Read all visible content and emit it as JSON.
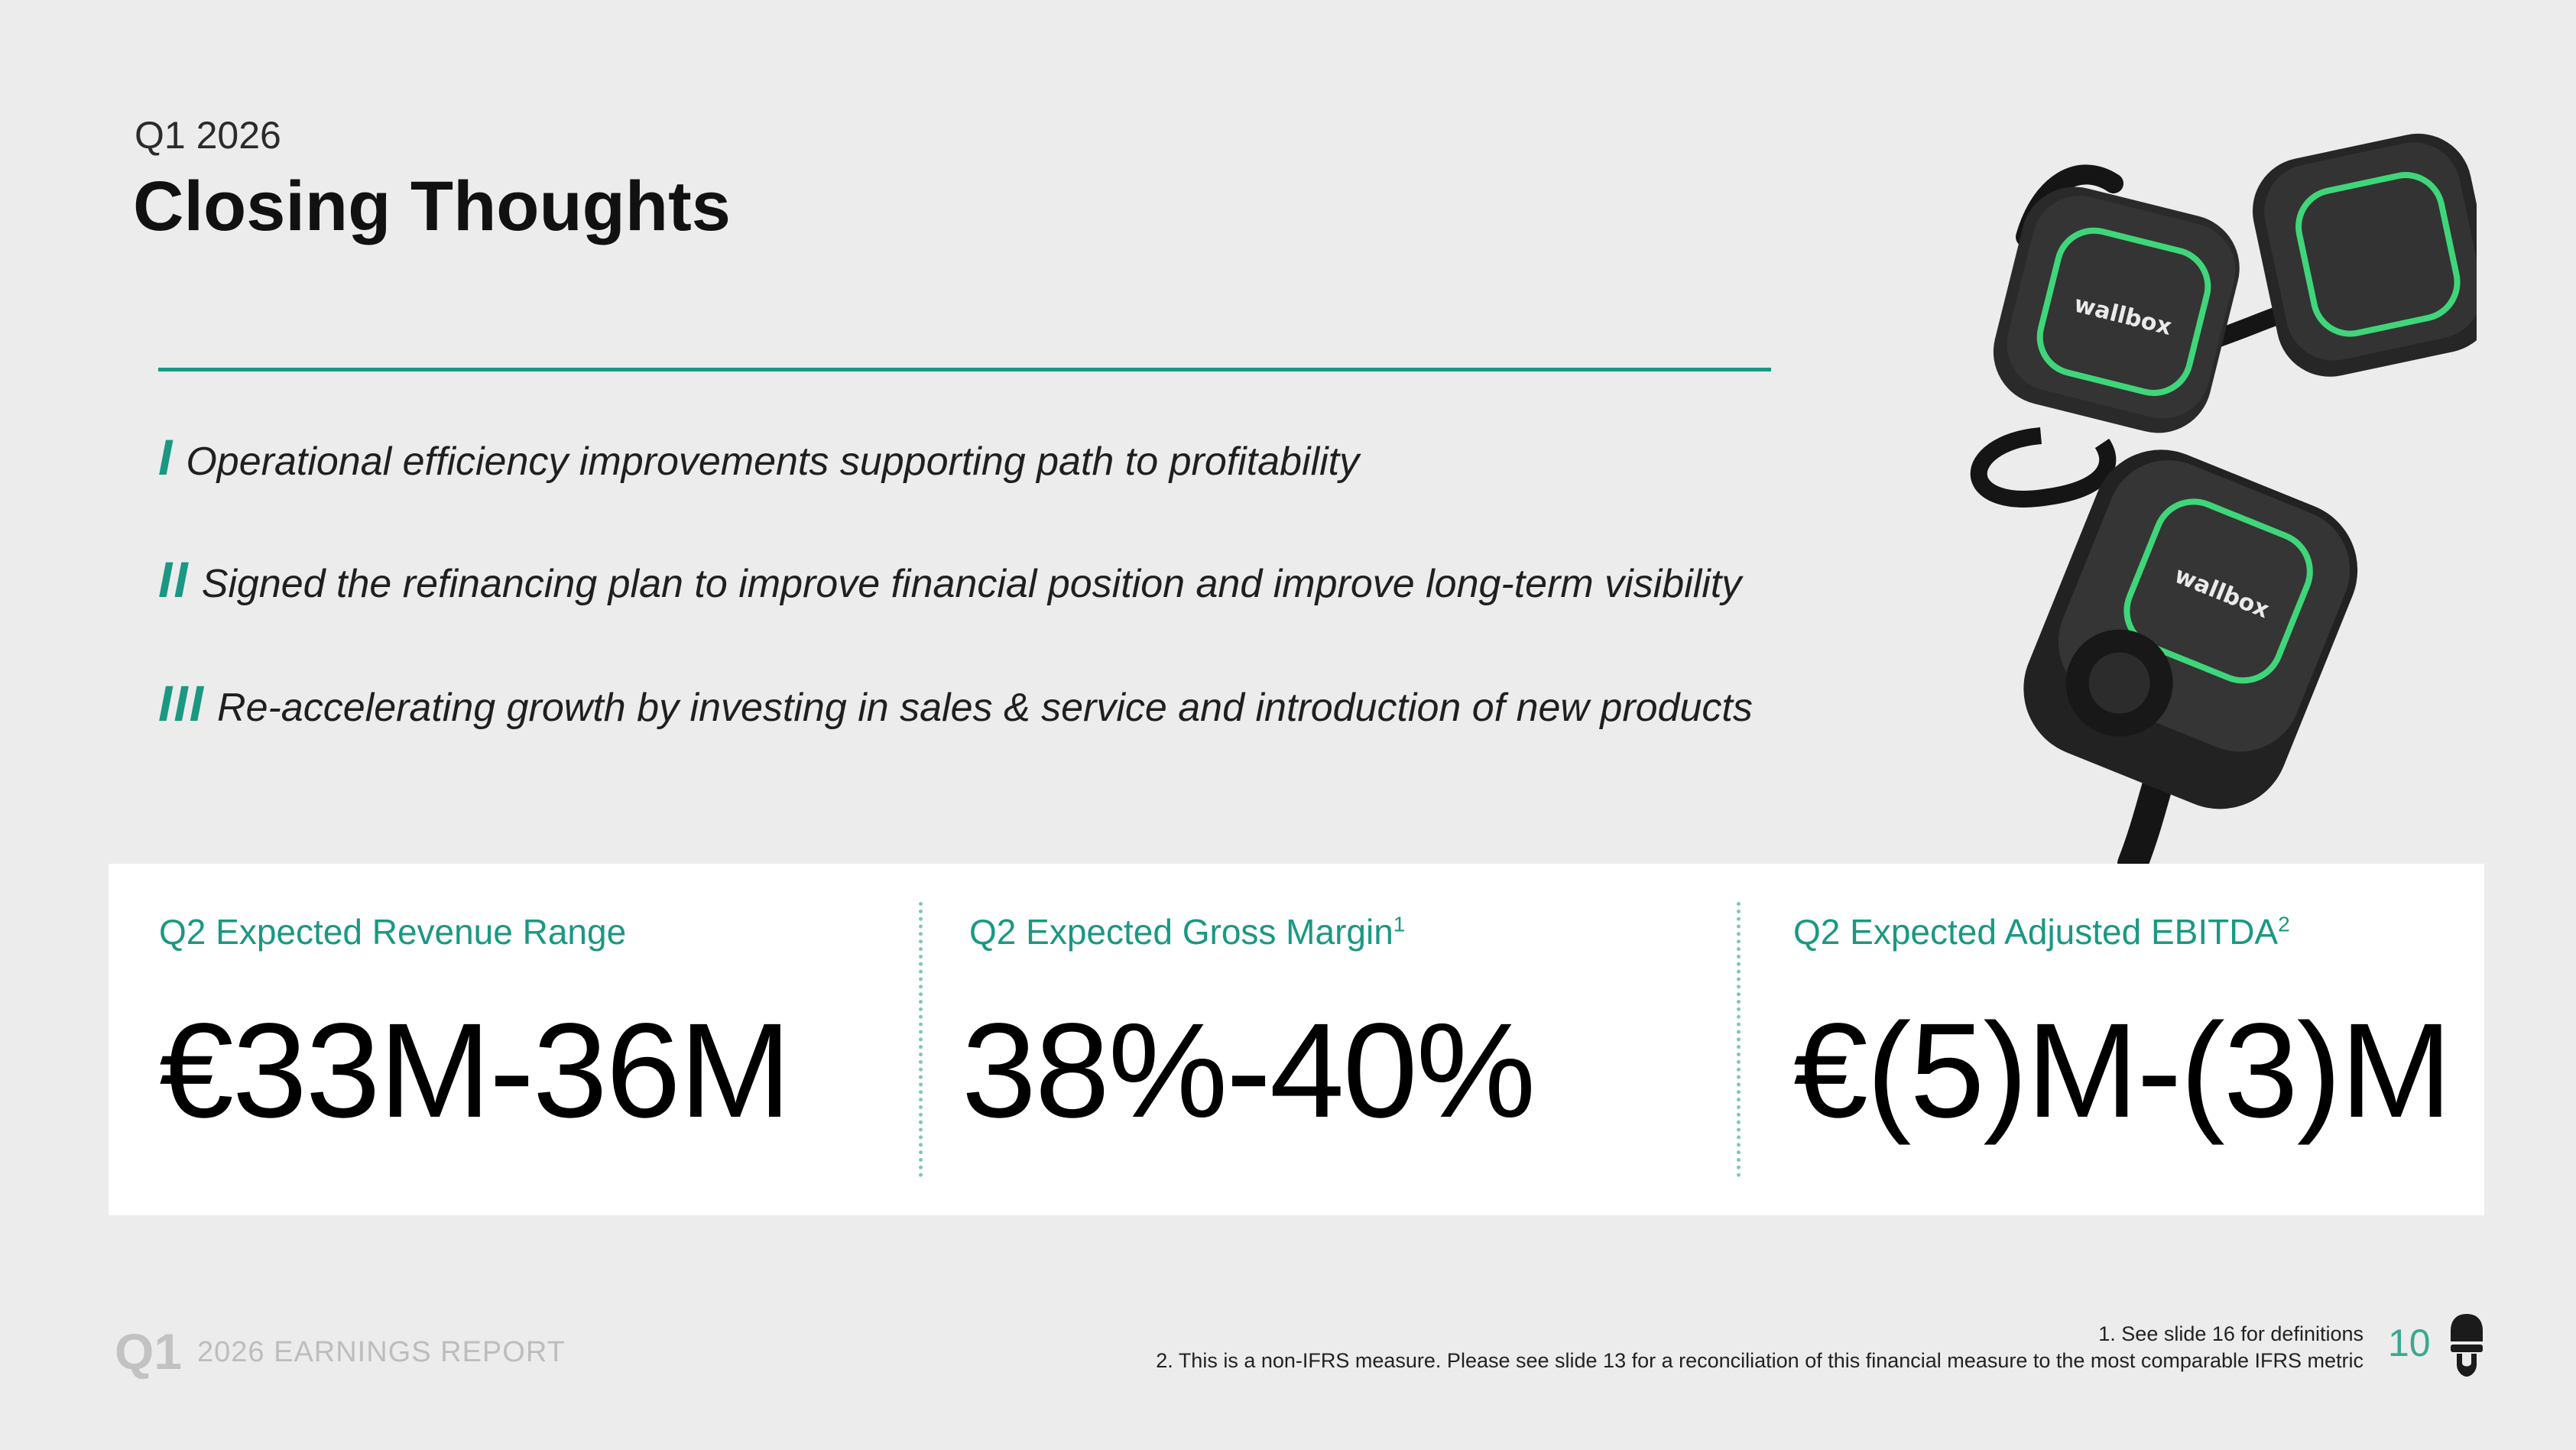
{
  "header": {
    "kicker": "Q1 2026",
    "title": "Closing Thoughts"
  },
  "bullets": [
    {
      "numeral": "I",
      "text": "Operational efficiency improvements supporting path to profitability"
    },
    {
      "numeral": "II",
      "text": "Signed the refinancing plan to improve financial position and improve long-term visibility"
    },
    {
      "numeral": "III",
      "text": "Re-accelerating growth by investing in sales & service and introduction of new products"
    }
  ],
  "metrics": [
    {
      "label": "Q2 Expected Revenue Range",
      "sup": "",
      "value": "€33M-36M"
    },
    {
      "label": "Q2 Expected Gross Margin",
      "sup": "1",
      "value": "38%-40%"
    },
    {
      "label": "Q2 Expected Adjusted EBITDA",
      "sup": "2",
      "value": "€(5)M-(3)M"
    }
  ],
  "product_image": {
    "brand_text": "wallbox"
  },
  "footer": {
    "q_label": "Q1",
    "report_label": "2026 EARNINGS REPORT",
    "footnote_1": "1. See slide 16 for definitions",
    "footnote_2": "2. This is a non-IFRS measure. Please see slide 13 for a reconciliation of this financial measure to the most comparable IFRS metric",
    "page_number": "10"
  },
  "colors": {
    "accent": "#1a9882",
    "background": "#ececec",
    "card": "#ffffff"
  }
}
